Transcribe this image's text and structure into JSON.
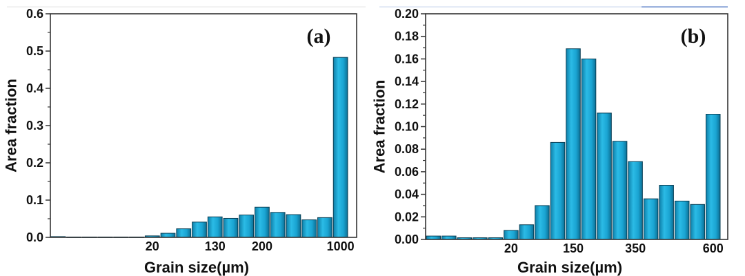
{
  "chart_data": [
    {
      "type": "bar",
      "panel_label": "(a)",
      "xlabel": "Grain size(µm)",
      "ylabel": "Area fraction",
      "ylim": [
        0,
        0.6
      ],
      "yticks": [
        "0.0",
        "0.1",
        "0.2",
        "0.3",
        "0.4",
        "0.5",
        "0.6"
      ],
      "ytick_values": [
        0,
        0.1,
        0.2,
        0.3,
        0.4,
        0.5,
        0.6
      ],
      "xtick_labels": [
        {
          "bar_index": 6,
          "label": "20"
        },
        {
          "bar_index": 10,
          "label": "130"
        },
        {
          "bar_index": 13,
          "label": "200"
        },
        {
          "bar_index": 18,
          "label": "1000"
        }
      ],
      "values": [
        0.002,
        0.001,
        0.001,
        0.001,
        0.001,
        0.001,
        0.004,
        0.011,
        0.023,
        0.041,
        0.055,
        0.051,
        0.06,
        0.081,
        0.067,
        0.061,
        0.047,
        0.053,
        0.483
      ],
      "bar_color": "#1ba6d3"
    },
    {
      "type": "bar",
      "panel_label": "(b)",
      "xlabel": "Grain size(µm)",
      "ylabel": "Area fraction",
      "ylim": [
        0,
        0.2
      ],
      "yticks": [
        "0.00",
        "0.02",
        "0.04",
        "0.06",
        "0.08",
        "0.10",
        "0.12",
        "0.14",
        "0.16",
        "0.18",
        "0.20"
      ],
      "ytick_values": [
        0,
        0.02,
        0.04,
        0.06,
        0.08,
        0.1,
        0.12,
        0.14,
        0.16,
        0.18,
        0.2
      ],
      "xtick_labels": [
        {
          "bar_index": 5,
          "label": "20"
        },
        {
          "bar_index": 9,
          "label": "150"
        },
        {
          "bar_index": 13,
          "label": "350"
        },
        {
          "bar_index": 18,
          "label": "600"
        }
      ],
      "values": [
        0.003,
        0.003,
        0.0015,
        0.0015,
        0.0015,
        0.008,
        0.013,
        0.03,
        0.086,
        0.169,
        0.16,
        0.112,
        0.087,
        0.069,
        0.036,
        0.048,
        0.034,
        0.031,
        0.111
      ],
      "bar_color": "#1ba6d3"
    }
  ]
}
